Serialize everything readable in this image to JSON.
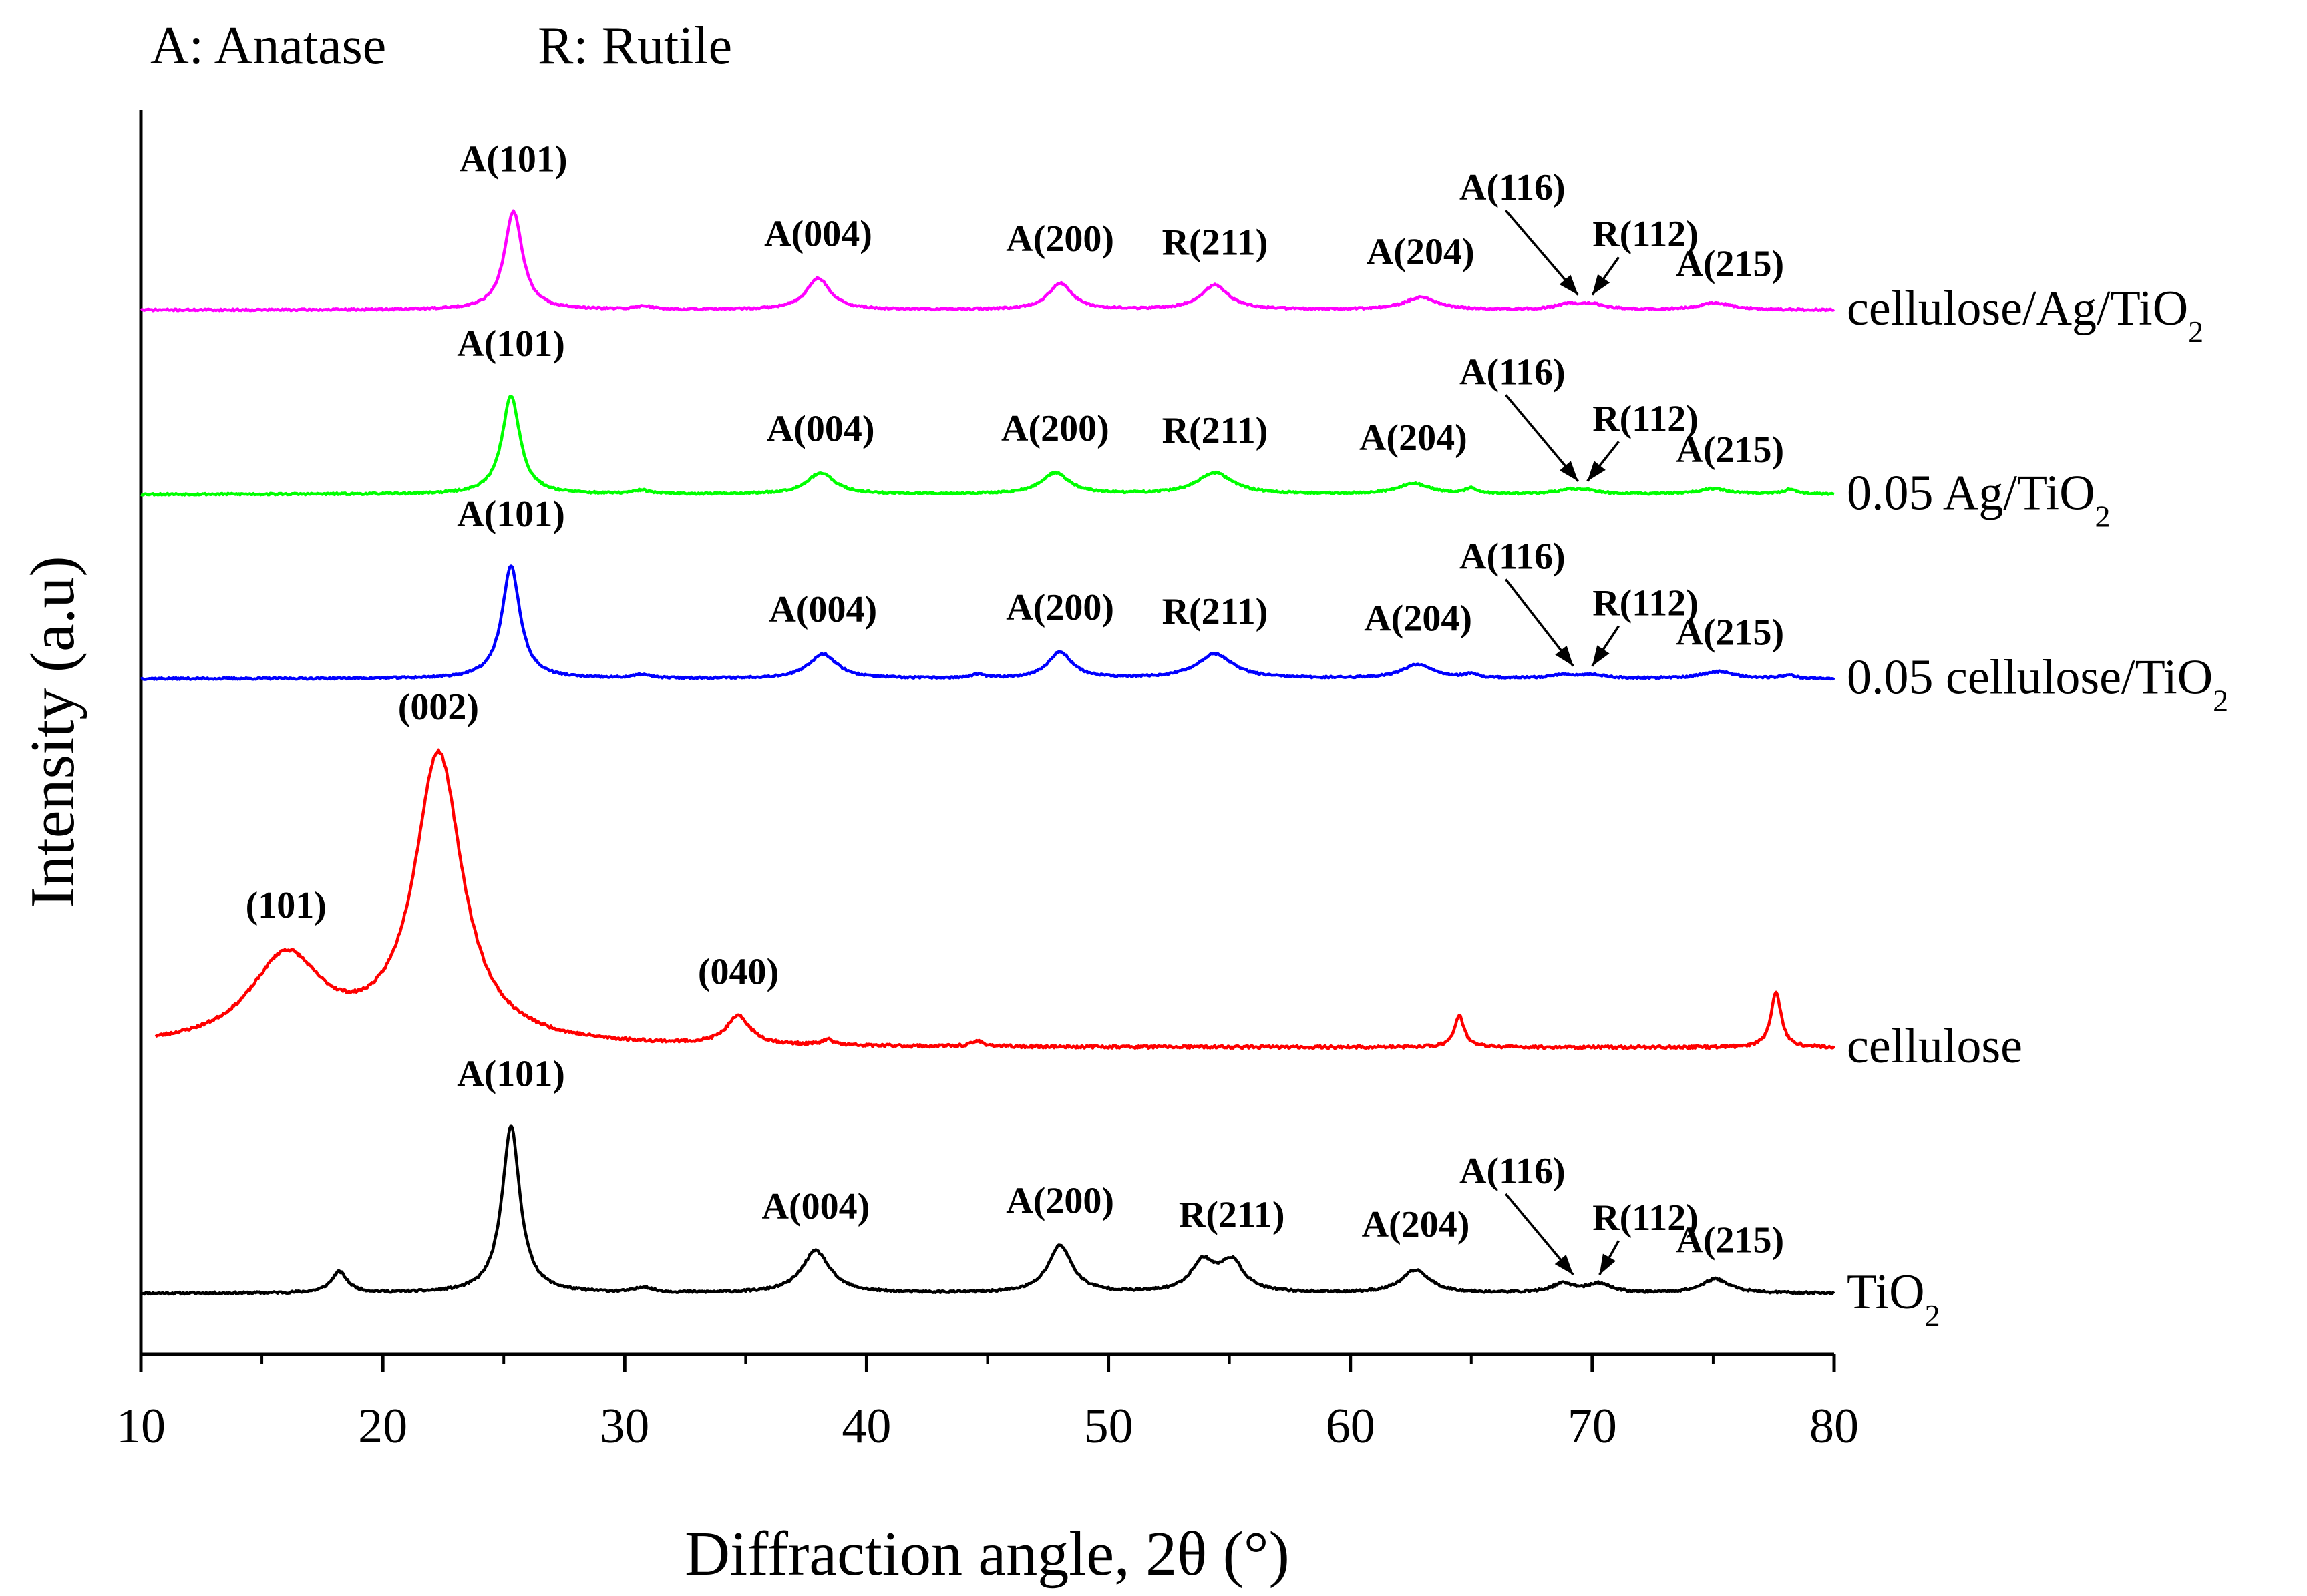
{
  "chart_data": {
    "type": "line",
    "title": "",
    "key": {
      "anatase": "A: Anatase",
      "rutile": "R: Rutile"
    },
    "xlabel": "Diffraction angle, 2θ (°)",
    "ylabel": "Intensity (a.u)",
    "xlim": [
      10,
      80
    ],
    "x_ticks": [
      "10",
      "20",
      "30",
      "40",
      "50",
      "60",
      "70",
      "80"
    ],
    "y_ticks": "none (stacked, arbitrary units)",
    "series": [
      {
        "name_main": "TiO",
        "name_sub": "2",
        "color": "#000000",
        "baseline": 0.0,
        "noise": 0.006,
        "seed": 11,
        "peaks": [
          {
            "x": 18.2,
            "h": 0.12,
            "w": 0.4
          },
          {
            "x": 25.3,
            "h": 0.95,
            "w": 0.45,
            "label": "A(101)"
          },
          {
            "x": 30.8,
            "h": 0.03,
            "w": 0.4
          },
          {
            "x": 37.9,
            "h": 0.24,
            "w": 0.7,
            "label": "A(004)"
          },
          {
            "x": 48.0,
            "h": 0.27,
            "w": 0.6,
            "label": "A(200)"
          },
          {
            "x": 53.9,
            "h": 0.17,
            "w": 0.6
          },
          {
            "x": 55.1,
            "h": 0.17,
            "w": 0.6,
            "label": "R(211)"
          },
          {
            "x": 62.7,
            "h": 0.13,
            "w": 0.7,
            "label": "A(204)"
          },
          {
            "x": 68.8,
            "h": 0.05,
            "w": 0.6,
            "label": "A(116)"
          },
          {
            "x": 70.3,
            "h": 0.05,
            "w": 0.6,
            "label": "R(112)"
          },
          {
            "x": 75.1,
            "h": 0.08,
            "w": 0.7,
            "label": "A(215)"
          }
        ]
      },
      {
        "name_main": "cellulose",
        "name_sub": "",
        "color": "#ff0000",
        "baseline": 1.4,
        "noise": 0.008,
        "seed": 23,
        "start_x": 10.6,
        "peaks": [
          {
            "x": 16.0,
            "h": 0.5,
            "w": 1.8,
            "label": "(101)"
          },
          {
            "x": 22.3,
            "h": 1.65,
            "w": 1.2,
            "label": "(002)"
          },
          {
            "x": 34.7,
            "h": 0.16,
            "w": 0.6,
            "label": "(040)"
          },
          {
            "x": 38.4,
            "h": 0.03,
            "w": 0.3
          },
          {
            "x": 44.6,
            "h": 0.03,
            "w": 0.3
          },
          {
            "x": 64.5,
            "h": 0.18,
            "w": 0.25
          },
          {
            "x": 77.6,
            "h": 0.32,
            "w": 0.25
          }
        ]
      },
      {
        "name_main": "0.05 cellulose/TiO",
        "name_sub": "2",
        "color": "#0000ff",
        "baseline": 3.5,
        "noise": 0.005,
        "seed": 37,
        "peaks": [
          {
            "x": 25.3,
            "h": 0.64,
            "w": 0.45,
            "label": "A(101)"
          },
          {
            "x": 30.7,
            "h": 0.02,
            "w": 0.4
          },
          {
            "x": 38.2,
            "h": 0.14,
            "w": 0.7,
            "label": "A(004)"
          },
          {
            "x": 44.6,
            "h": 0.02,
            "w": 0.3
          },
          {
            "x": 48.0,
            "h": 0.15,
            "w": 0.6,
            "label": "A(200)"
          },
          {
            "x": 54.4,
            "h": 0.14,
            "w": 0.9,
            "label": "R(211)"
          },
          {
            "x": 62.8,
            "h": 0.08,
            "w": 0.8,
            "label": "A(204)"
          },
          {
            "x": 65.0,
            "h": 0.02,
            "w": 0.3
          },
          {
            "x": 68.8,
            "h": 0.02,
            "w": 0.6,
            "label": "A(116)"
          },
          {
            "x": 70.0,
            "h": 0.02,
            "w": 0.6,
            "label": "R(112)"
          },
          {
            "x": 75.2,
            "h": 0.04,
            "w": 0.8,
            "label": "A(215)"
          },
          {
            "x": 78.1,
            "h": 0.02,
            "w": 0.3
          }
        ]
      },
      {
        "name_main": "0.05 Ag/TiO",
        "name_sub": "2",
        "color": "#00ff00",
        "baseline": 4.55,
        "noise": 0.005,
        "seed": 53,
        "peaks": [
          {
            "x": 25.3,
            "h": 0.56,
            "w": 0.45,
            "label": "A(101)"
          },
          {
            "x": 30.7,
            "h": 0.02,
            "w": 0.4
          },
          {
            "x": 38.1,
            "h": 0.12,
            "w": 0.7,
            "label": "A(004)"
          },
          {
            "x": 47.8,
            "h": 0.12,
            "w": 0.7,
            "label": "A(200)"
          },
          {
            "x": 54.4,
            "h": 0.12,
            "w": 0.9,
            "label": "R(211)"
          },
          {
            "x": 62.6,
            "h": 0.06,
            "w": 0.8,
            "label": "A(204)"
          },
          {
            "x": 65.0,
            "h": 0.03,
            "w": 0.3
          },
          {
            "x": 69.0,
            "h": 0.02,
            "w": 0.6,
            "label": "A(116)"
          },
          {
            "x": 69.8,
            "h": 0.02,
            "w": 0.6,
            "label": "R(112)"
          },
          {
            "x": 75.0,
            "h": 0.03,
            "w": 0.8,
            "label": "A(215)"
          },
          {
            "x": 78.2,
            "h": 0.03,
            "w": 0.3
          }
        ]
      },
      {
        "name_main": "cellulose/Ag/TiO",
        "name_sub": "2",
        "color": "#ff00ff",
        "baseline": 5.6,
        "noise": 0.005,
        "seed": 71,
        "peaks": [
          {
            "x": 25.4,
            "h": 0.56,
            "w": 0.45,
            "label": "A(101)"
          },
          {
            "x": 30.8,
            "h": 0.02,
            "w": 0.4
          },
          {
            "x": 38.0,
            "h": 0.18,
            "w": 0.6,
            "label": "A(004)"
          },
          {
            "x": 48.0,
            "h": 0.15,
            "w": 0.6,
            "label": "A(200)"
          },
          {
            "x": 54.4,
            "h": 0.14,
            "w": 0.7,
            "label": "R(211)"
          },
          {
            "x": 62.9,
            "h": 0.07,
            "w": 0.8,
            "label": "A(204)"
          },
          {
            "x": 69.0,
            "h": 0.03,
            "w": 0.6,
            "label": "A(116)"
          },
          {
            "x": 70.0,
            "h": 0.03,
            "w": 0.6,
            "label": "R(112)"
          },
          {
            "x": 75.1,
            "h": 0.04,
            "w": 0.8,
            "label": "A(215)"
          }
        ]
      }
    ]
  }
}
